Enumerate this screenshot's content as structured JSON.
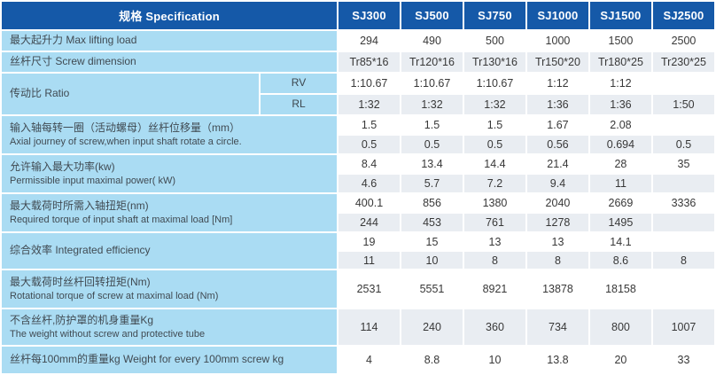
{
  "colors": {
    "header_bg": "#1559a8",
    "header_text": "#ffffff",
    "label_bg": "#aadcf3",
    "row_bg": "#ffffff",
    "row_alt_bg": "#e9edf2",
    "data_text": "#383838"
  },
  "header": {
    "spec_label": "规格  Specification",
    "columns": [
      "SJ300",
      "SJ500",
      "SJ750",
      "SJ1000",
      "SJ1500",
      "SJ2500"
    ]
  },
  "groups": [
    {
      "label_line1": "最大起升力 Max lifting load",
      "rows": [
        [
          "294",
          "490",
          "500",
          "1000",
          "1500",
          "2500"
        ]
      ]
    },
    {
      "label_line1": "丝杆尺寸  Screw dimension",
      "rows": [
        [
          "Tr85*16",
          "Tr120*16",
          "Tr130*16",
          "Tr150*20",
          "Tr180*25",
          "Tr230*25"
        ]
      ]
    },
    {
      "label_line1": "传动比 Ratio",
      "sublabels": [
        "RV",
        "RL"
      ],
      "rows": [
        [
          "1:10.67",
          "1:10.67",
          "1:10.67",
          "1:12",
          "1:12",
          ""
        ],
        [
          "1:32",
          "1:32",
          "1:32",
          "1:36",
          "1:36",
          "1:50"
        ]
      ]
    },
    {
      "label_line1": "输入轴每转一圈（活动螺母）丝杆位移量（mm）",
      "label_line2": "Axial journey of screw,when input shaft rotate a circle.",
      "rows": [
        [
          "1.5",
          "1.5",
          "1.5",
          "1.67",
          "2.08",
          ""
        ],
        [
          "0.5",
          "0.5",
          "0.5",
          "0.56",
          "0.694",
          "0.5"
        ]
      ]
    },
    {
      "label_line1": "允许输入最大功率(kw)",
      "label_line2": "Permissible input maximal power( kW)",
      "rows": [
        [
          "8.4",
          "13.4",
          "14.4",
          "21.4",
          "28",
          "35"
        ],
        [
          "4.6",
          "5.7",
          "7.2",
          "9.4",
          "11",
          ""
        ]
      ]
    },
    {
      "label_line1": "最大载荷时所需入轴扭矩(nm)",
      "label_line2": "Required torque of input shaft at maximal load [Nm]",
      "rows": [
        [
          "400.1",
          "856",
          "1380",
          "2040",
          "2669",
          "3336"
        ],
        [
          "244",
          "453",
          "761",
          "1278",
          "1495",
          ""
        ]
      ]
    },
    {
      "label_line1": "综合效率  Integrated efficiency",
      "rows": [
        [
          "19",
          "15",
          "13",
          "13",
          "14.1",
          ""
        ],
        [
          "11",
          "10",
          "8",
          "8",
          "8.6",
          "8"
        ]
      ]
    },
    {
      "label_line1": "最大载荷时丝杆回转扭矩(Nm)",
      "label_line2": "Rotational torque of screw at maximal load  (Nm)",
      "rows": [
        [
          "2531",
          "5551",
          "8921",
          "13878",
          "18158",
          ""
        ]
      ]
    },
    {
      "label_line1": "不含丝杆,防护罩的机身重量Kg",
      "label_line2": "The weight without screw and protective tube",
      "rows": [
        [
          "114",
          "240",
          "360",
          "734",
          "800",
          "1007"
        ]
      ]
    },
    {
      "label_line1": "丝杆每100mm的重量kg Weight for every 100mm screw kg",
      "rows": [
        [
          "4",
          "8.8",
          "10",
          "13.8",
          "20",
          "33"
        ]
      ]
    }
  ]
}
